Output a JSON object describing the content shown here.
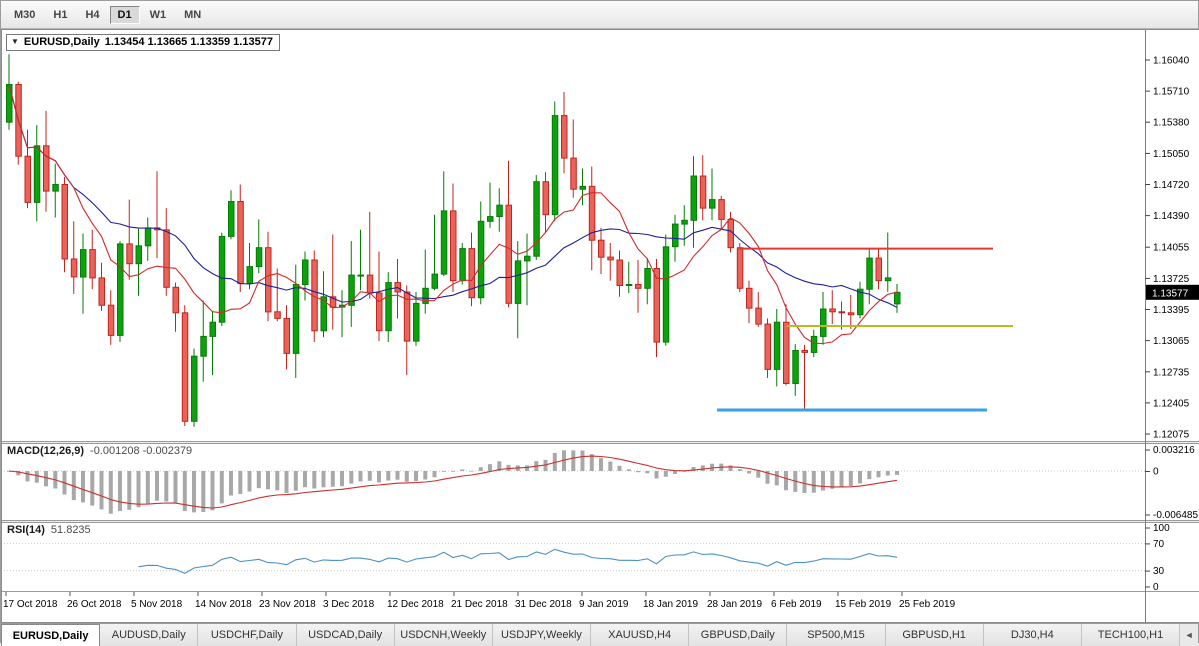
{
  "icons": {
    "one_click_collapse": "▼",
    "tab_scroll_left": "◄"
  },
  "toolbar": {
    "timeframes": [
      {
        "label": "M30",
        "active": false
      },
      {
        "label": "H1",
        "active": false
      },
      {
        "label": "H4",
        "active": false
      },
      {
        "label": "D1",
        "active": true
      },
      {
        "label": "W1",
        "active": false
      },
      {
        "label": "MN",
        "active": false
      }
    ]
  },
  "chart": {
    "symbol": "EURUSD,Daily",
    "ohlc": "1.13454 1.13665 1.13359 1.13577",
    "price_badge": "1.13577",
    "price_min": 1.12001,
    "price_max": 1.16347,
    "y_ticks": [
      "1.16040",
      "1.15710",
      "1.15380",
      "1.15050",
      "1.14720",
      "1.14390",
      "1.14055",
      "1.13725",
      "1.13395",
      "1.13065",
      "1.12735",
      "1.12405",
      "1.12075"
    ],
    "h_lines": [
      {
        "name": "resistance-line",
        "price": 1.1404,
        "color": "#e03a30",
        "width": 2,
        "from": 0.643,
        "to": 0.867
      },
      {
        "name": "mid-support-line",
        "price": 1.1322,
        "color": "#b8bd1f",
        "width": 2,
        "from": 0.687,
        "to": 0.885
      },
      {
        "name": "support-line",
        "price": 1.1233,
        "color": "#39a2e5",
        "width": 3,
        "from": 0.626,
        "to": 0.862
      }
    ],
    "colors": {
      "up_fill": "#0da20d",
      "up_border": "#067a06",
      "down_fill": "#e8635a",
      "down_border": "#c3241c",
      "ma_fast": "#cf2b2b",
      "ma_slow": "#20209a",
      "macd_hist": "#a8a8a8",
      "macd_signal": "#cb2f2f",
      "rsi_line": "#4a90c8",
      "badge_bg": "#000000"
    }
  },
  "macd": {
    "name": "MACD(12,26,9)",
    "values": "-0.001208 -0.002379",
    "axis": [
      "0.003216",
      "0",
      "-0.006485"
    ],
    "params": {
      "fast": 12,
      "slow": 26,
      "signal": 9
    }
  },
  "rsi": {
    "name": "RSI(14)",
    "value": "51.8235",
    "axis": [
      "100",
      "70",
      "30",
      "0"
    ],
    "levels": [
      70,
      30
    ],
    "period": 14
  },
  "tabs": {
    "items": [
      {
        "label": "EURUSD,Daily",
        "active": true
      },
      {
        "label": "AUDUSD,Daily",
        "active": false
      },
      {
        "label": "USDCHF,Daily",
        "active": false
      },
      {
        "label": "USDCAD,Daily",
        "active": false
      },
      {
        "label": "USDCNH,Weekly",
        "active": false
      },
      {
        "label": "USDJPY,Weekly",
        "active": false
      },
      {
        "label": "XAUUSD,H4",
        "active": false
      },
      {
        "label": "GBPUSD,Daily",
        "active": false
      },
      {
        "label": "SP500,M15",
        "active": false
      },
      {
        "label": "GBPUSD,H1",
        "active": false
      },
      {
        "label": "DJ30,H4",
        "active": false
      },
      {
        "label": "TECH100,H1",
        "active": false
      }
    ]
  },
  "chart_data": {
    "type": "candlestick",
    "symbol": "EURUSD",
    "timeframe": "Daily",
    "title": "EURUSD,Daily",
    "ylim": [
      1.12075,
      1.1604
    ],
    "ma_fast_period": 8,
    "ma_slow_period": 20,
    "x_tick_labels": [
      "17 Oct 2018",
      "26 Oct 2018",
      "5 Nov 2018",
      "14 Nov 2018",
      "23 Nov 2018",
      "3 Dec 2018",
      "12 Dec 2018",
      "21 Dec 2018",
      "31 Dec 2018",
      "9 Jan 2019",
      "18 Jan 2019",
      "28 Jan 2019",
      "6 Feb 2019",
      "15 Feb 2019",
      "25 Feb 2019"
    ],
    "candles": [
      [
        1.1538,
        1.161,
        1.153,
        1.1578
      ],
      [
        1.1578,
        1.1581,
        1.1493,
        1.1502
      ],
      [
        1.1502,
        1.153,
        1.1447,
        1.1453
      ],
      [
        1.1453,
        1.1535,
        1.1433,
        1.1513
      ],
      [
        1.1513,
        1.155,
        1.1443,
        1.1465
      ],
      [
        1.1465,
        1.1494,
        1.1437,
        1.1472
      ],
      [
        1.1472,
        1.148,
        1.1379,
        1.1393
      ],
      [
        1.1393,
        1.1433,
        1.1356,
        1.1374
      ],
      [
        1.1374,
        1.142,
        1.1335,
        1.1403
      ],
      [
        1.1403,
        1.1424,
        1.1361,
        1.1373
      ],
      [
        1.1373,
        1.1389,
        1.1338,
        1.1344
      ],
      [
        1.1344,
        1.136,
        1.1302,
        1.1312
      ],
      [
        1.1312,
        1.1412,
        1.1305,
        1.1409
      ],
      [
        1.1409,
        1.1456,
        1.1371,
        1.1388
      ],
      [
        1.1388,
        1.1425,
        1.1354,
        1.1407
      ],
      [
        1.1407,
        1.1437,
        1.1391,
        1.1426
      ],
      [
        1.1426,
        1.1486,
        1.1394,
        1.1424
      ],
      [
        1.1424,
        1.1447,
        1.1354,
        1.1363
      ],
      [
        1.1363,
        1.1368,
        1.1316,
        1.1336
      ],
      [
        1.1336,
        1.1344,
        1.1216,
        1.1221
      ],
      [
        1.1221,
        1.1298,
        1.1215,
        1.129
      ],
      [
        1.129,
        1.1349,
        1.1263,
        1.1311
      ],
      [
        1.1311,
        1.1338,
        1.127,
        1.1326
      ],
      [
        1.1326,
        1.1421,
        1.1322,
        1.1417
      ],
      [
        1.1417,
        1.1466,
        1.1414,
        1.1454
      ],
      [
        1.1454,
        1.1472,
        1.1358,
        1.1367
      ],
      [
        1.1367,
        1.141,
        1.1361,
        1.1385
      ],
      [
        1.1385,
        1.1435,
        1.1378,
        1.1405
      ],
      [
        1.1405,
        1.1422,
        1.1327,
        1.1337
      ],
      [
        1.1337,
        1.1383,
        1.1327,
        1.133
      ],
      [
        1.133,
        1.1344,
        1.1276,
        1.1293
      ],
      [
        1.1293,
        1.1387,
        1.1267,
        1.1366
      ],
      [
        1.1366,
        1.1401,
        1.1349,
        1.1392
      ],
      [
        1.1392,
        1.1402,
        1.1305,
        1.1317
      ],
      [
        1.1317,
        1.138,
        1.131,
        1.1353
      ],
      [
        1.1353,
        1.1419,
        1.1318,
        1.1342
      ],
      [
        1.1342,
        1.136,
        1.131,
        1.1344
      ],
      [
        1.1344,
        1.1412,
        1.1321,
        1.1376
      ],
      [
        1.1376,
        1.1424,
        1.136,
        1.1376
      ],
      [
        1.1376,
        1.1443,
        1.1351,
        1.1357
      ],
      [
        1.1357,
        1.1401,
        1.1306,
        1.1317
      ],
      [
        1.1317,
        1.1379,
        1.1305,
        1.1368
      ],
      [
        1.1368,
        1.1393,
        1.133,
        1.1358
      ],
      [
        1.1358,
        1.1365,
        1.127,
        1.1306
      ],
      [
        1.1306,
        1.1358,
        1.1301,
        1.1346
      ],
      [
        1.1346,
        1.1403,
        1.1335,
        1.1362
      ],
      [
        1.1362,
        1.144,
        1.136,
        1.1377
      ],
      [
        1.1377,
        1.1486,
        1.1375,
        1.1444
      ],
      [
        1.1444,
        1.1473,
        1.1358,
        1.137
      ],
      [
        1.137,
        1.141,
        1.1366,
        1.1404
      ],
      [
        1.1404,
        1.1421,
        1.1343,
        1.1352
      ],
      [
        1.1352,
        1.1454,
        1.1345,
        1.1433
      ],
      [
        1.1433,
        1.1474,
        1.1426,
        1.1438
      ],
      [
        1.1438,
        1.1468,
        1.1422,
        1.145
      ],
      [
        1.145,
        1.1497,
        1.1342,
        1.1346
      ],
      [
        1.1346,
        1.1412,
        1.1309,
        1.1391
      ],
      [
        1.1391,
        1.142,
        1.1344,
        1.1396
      ],
      [
        1.1396,
        1.1482,
        1.1392,
        1.1475
      ],
      [
        1.1475,
        1.1485,
        1.1421,
        1.144
      ],
      [
        1.144,
        1.156,
        1.1433,
        1.1545
      ],
      [
        1.1545,
        1.157,
        1.1484,
        1.15
      ],
      [
        1.15,
        1.1541,
        1.1458,
        1.1467
      ],
      [
        1.1467,
        1.1489,
        1.145,
        1.147
      ],
      [
        1.147,
        1.1491,
        1.1381,
        1.1413
      ],
      [
        1.1413,
        1.1426,
        1.1377,
        1.1395
      ],
      [
        1.1395,
        1.141,
        1.137,
        1.1392
      ],
      [
        1.1392,
        1.1402,
        1.1353,
        1.1365
      ],
      [
        1.1365,
        1.139,
        1.1357,
        1.1366
      ],
      [
        1.1366,
        1.1392,
        1.1336,
        1.1362
      ],
      [
        1.1362,
        1.1394,
        1.1345,
        1.1383
      ],
      [
        1.1383,
        1.1393,
        1.1289,
        1.1305
      ],
      [
        1.1305,
        1.1419,
        1.1301,
        1.1406
      ],
      [
        1.1406,
        1.144,
        1.139,
        1.143
      ],
      [
        1.143,
        1.145,
        1.1407,
        1.1434
      ],
      [
        1.1434,
        1.1502,
        1.1405,
        1.1481
      ],
      [
        1.1481,
        1.1503,
        1.1434,
        1.1447
      ],
      [
        1.1447,
        1.1489,
        1.1434,
        1.1456
      ],
      [
        1.1456,
        1.146,
        1.1425,
        1.1435
      ],
      [
        1.1435,
        1.1443,
        1.14,
        1.1405
      ],
      [
        1.1405,
        1.141,
        1.1358,
        1.1362
      ],
      [
        1.1362,
        1.137,
        1.1325,
        1.1341
      ],
      [
        1.1341,
        1.1358,
        1.1321,
        1.1324
      ],
      [
        1.1324,
        1.133,
        1.1267,
        1.1276
      ],
      [
        1.1276,
        1.134,
        1.1258,
        1.1326
      ],
      [
        1.1326,
        1.1345,
        1.1259,
        1.1261
      ],
      [
        1.1261,
        1.1303,
        1.1248,
        1.1296
      ],
      [
        1.1296,
        1.1302,
        1.1234,
        1.1294
      ],
      [
        1.1294,
        1.1318,
        1.1289,
        1.1311
      ],
      [
        1.1311,
        1.1358,
        1.1302,
        1.134
      ],
      [
        1.134,
        1.136,
        1.1324,
        1.1337
      ],
      [
        1.1337,
        1.1348,
        1.1318,
        1.1336
      ],
      [
        1.1336,
        1.1355,
        1.1319,
        1.1334
      ],
      [
        1.1334,
        1.1369,
        1.133,
        1.1361
      ],
      [
        1.1361,
        1.1404,
        1.1345,
        1.1394
      ],
      [
        1.1394,
        1.1404,
        1.1361,
        1.137
      ],
      [
        1.137,
        1.1421,
        1.1358,
        1.1373
      ],
      [
        1.13454,
        1.13665,
        1.13359,
        1.13577
      ]
    ]
  }
}
